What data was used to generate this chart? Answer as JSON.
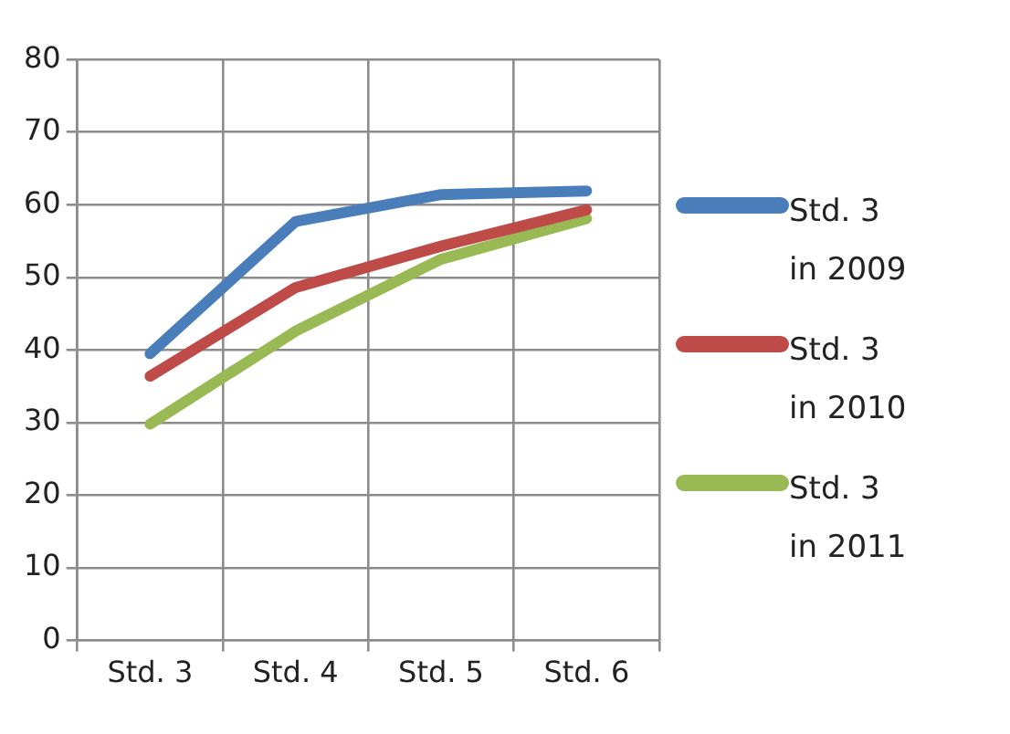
{
  "chart_data": {
    "type": "line",
    "categories": [
      "Std. 3",
      "Std. 4",
      "Std. 5",
      "Std. 6"
    ],
    "series": [
      {
        "name": "Std. 3 in 2009",
        "color": "#4a7ebb",
        "values": [
          39.5,
          57.7,
          61.4,
          61.9
        ]
      },
      {
        "name": "Std. 3 in 2010",
        "color": "#be4b48",
        "values": [
          36.4,
          48.6,
          54.3,
          59.3
        ]
      },
      {
        "name": "Std. 3 in 2011",
        "color": "#98b954",
        "values": [
          29.8,
          42.6,
          52.5,
          58.1
        ]
      }
    ],
    "ylim": [
      0,
      80
    ],
    "yticks": [
      0,
      10,
      20,
      30,
      40,
      50,
      60,
      70,
      80
    ],
    "grid": true,
    "legend": "right",
    "marker": "none",
    "line_style": "solid"
  }
}
